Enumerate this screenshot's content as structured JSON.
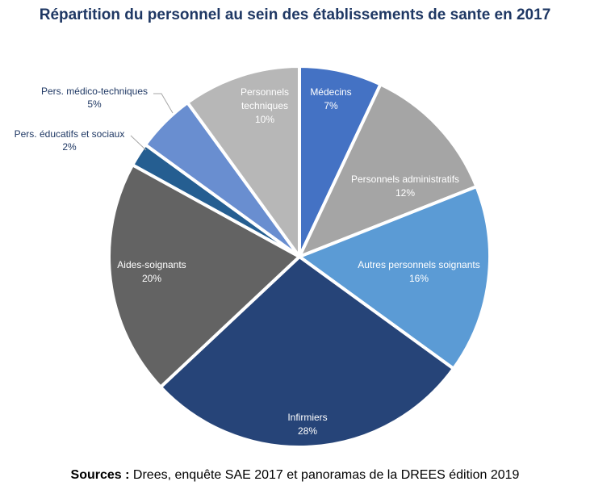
{
  "chart_data": {
    "type": "pie",
    "title": "Répartition du personnel au sein des établissements de sante en 2017",
    "legend": "none",
    "slices": [
      {
        "label": "Médecins",
        "value": 7,
        "display": "7%",
        "color": "#4472c4",
        "label_color": "#ffffff"
      },
      {
        "label": "Personnels administratifs",
        "value": 12,
        "display": "12%",
        "color": "#a5a5a5",
        "label_color": "#ffffff"
      },
      {
        "label": "Autres personnels soignants",
        "value": 16,
        "display": "16%",
        "color": "#5b9bd5",
        "label_color": "#ffffff"
      },
      {
        "label": "Infirmiers",
        "value": 28,
        "display": "28%",
        "color": "#264478",
        "label_color": "#ffffff"
      },
      {
        "label": "Aides-soignants",
        "value": 20,
        "display": "20%",
        "color": "#636363",
        "label_color": "#ffffff"
      },
      {
        "label": "Pers. éducatifs et sociaux",
        "value": 2,
        "display": "2%",
        "color": "#255e91",
        "label_color": "#1f3864"
      },
      {
        "label": "Pers. médico-techniques",
        "value": 5,
        "display": "5%",
        "color": "#698ed0",
        "label_color": "#1f3864"
      },
      {
        "label": "Personnels techniques",
        "value": 10,
        "display": "10%",
        "color": "#b7b7b7",
        "label_color": "#ffffff"
      }
    ]
  },
  "footer": {
    "source_label": "Sources :",
    "source_text": " Drees, enquête SAE 2017 et panoramas de la DREES édition 2019"
  }
}
